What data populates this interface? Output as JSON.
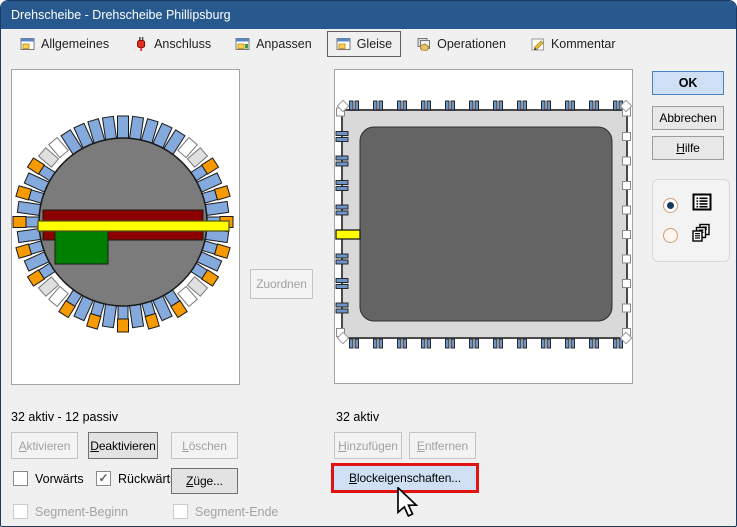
{
  "window": {
    "title": "Drehscheibe - Drehscheibe Phillipsburg"
  },
  "tabs": [
    {
      "label": "Allgemeines",
      "icon": "form-icon",
      "selected": false
    },
    {
      "label": "Anschluss",
      "icon": "plug-icon",
      "selected": false
    },
    {
      "label": "Anpassen",
      "icon": "form-icon",
      "selected": false
    },
    {
      "label": "Gleise",
      "icon": "form-icon",
      "selected": true
    },
    {
      "label": "Operationen",
      "icon": "hand-cards-icon",
      "selected": false
    },
    {
      "label": "Kommentar",
      "icon": "pencil-note-icon",
      "selected": false
    }
  ],
  "actions": {
    "zuordnen": "Zuordnen"
  },
  "dialog_buttons": {
    "ok": "OK",
    "abbrechen": "Abbrechen",
    "hilfe": "Hilfe"
  },
  "view_options": [
    {
      "icon": "list-view-icon",
      "selected": true
    },
    {
      "icon": "stacked-pages-icon",
      "selected": false
    }
  ],
  "left": {
    "status": "32 aktiv - 12 passiv",
    "aktivieren": "Aktivieren",
    "deaktivieren": "Deaktivieren",
    "loeschen": "Löschen",
    "vorwaerts": "Vorwärts",
    "rueckwaerts": "Rückwärts",
    "zuege": "Züge...",
    "segment_beginn": "Segment-Beginn",
    "segment_ende": "Segment-Ende",
    "check_glyphs": {
      "vorwaerts": "",
      "rueckwaerts": "✓",
      "segment_beginn": "",
      "segment_ende": ""
    },
    "turntable": {
      "segment_colors": [
        "blue",
        "blue",
        "blue",
        "blue",
        "blue",
        "white",
        "lightgray",
        "orange",
        "blue",
        "orange",
        "blue",
        "orange",
        "blue",
        "orange",
        "blue",
        "orange",
        "lightgray",
        "white",
        "orange",
        "blue",
        "orange",
        "blue",
        "orange",
        "blue",
        "orange",
        "blue",
        "orange",
        "white",
        "lightgray",
        "orange",
        "blue",
        "orange",
        "blue",
        "orange",
        "blue",
        "orange",
        "blue",
        "orange",
        "lightgray",
        "white",
        "blue",
        "blue",
        "blue",
        "blue"
      ],
      "palette": {
        "blue": "#84a9dc",
        "orange": "#f59a00",
        "white": "#ffffff",
        "lightgray": "#e0e0e0",
        "disc": "#7b7b7b",
        "bridge_red": "#8b0000",
        "bridge_yellow": "#ffff00",
        "block_green": "#008000"
      }
    }
  },
  "right": {
    "status": "32 aktiv",
    "hinzufuegen": "Hinzufügen",
    "entfernen": "Entfernen",
    "blockeigenschaften": "Blockeigenschaften...",
    "schematic": {
      "top_tick_count": 12,
      "bottom_tick_count": 12,
      "left_items": [
        "white",
        "blue",
        "blue",
        "blue",
        "blue",
        "yellow",
        "blue",
        "blue",
        "blue",
        "white"
      ],
      "right_items": [
        "white",
        "white",
        "white",
        "white",
        "white",
        "white",
        "white",
        "white",
        "white",
        "white"
      ],
      "palette": {
        "tick_blue": "#6e94c6",
        "yellow": "#ffff00",
        "frame": "#d9d9d9",
        "pit": "#646464"
      }
    }
  }
}
